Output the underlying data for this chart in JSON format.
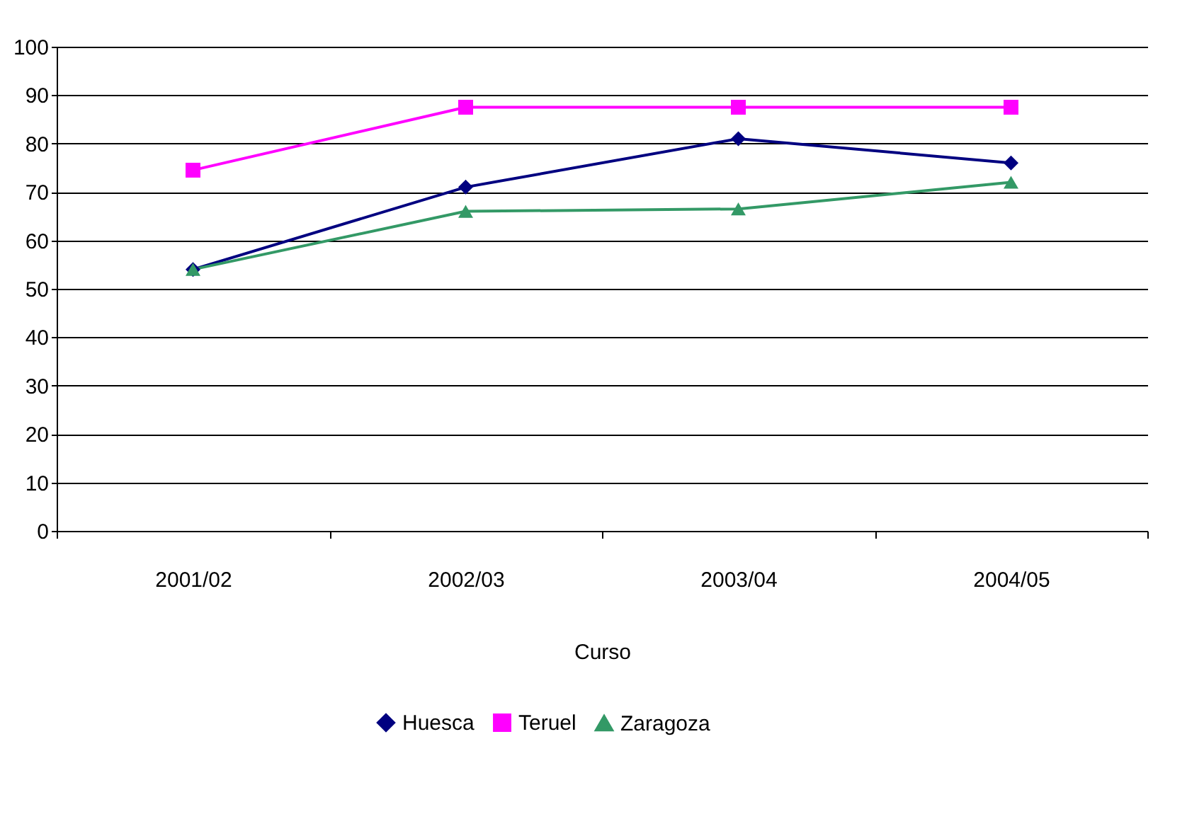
{
  "chart_data": {
    "type": "line",
    "xlabel": "Curso",
    "categories": [
      "2001/02",
      "2002/03",
      "2003/04",
      "2004/05"
    ],
    "series": [
      {
        "name": "Huesca",
        "color": "#000080",
        "marker": "diamond",
        "values": [
          54,
          71,
          81,
          76
        ]
      },
      {
        "name": "Teruel",
        "color": "#ff00ff",
        "marker": "square",
        "values": [
          74.5,
          87.5,
          87.5,
          87.5
        ]
      },
      {
        "name": "Zaragoza",
        "color": "#339966",
        "marker": "triangle",
        "values": [
          54,
          66,
          66.5,
          72
        ]
      }
    ],
    "ylim": [
      0,
      100
    ],
    "yticks": [
      0,
      10,
      20,
      30,
      40,
      50,
      60,
      70,
      80,
      90,
      100
    ],
    "grid": "y",
    "legend": "bottom",
    "line_style": "solid"
  }
}
